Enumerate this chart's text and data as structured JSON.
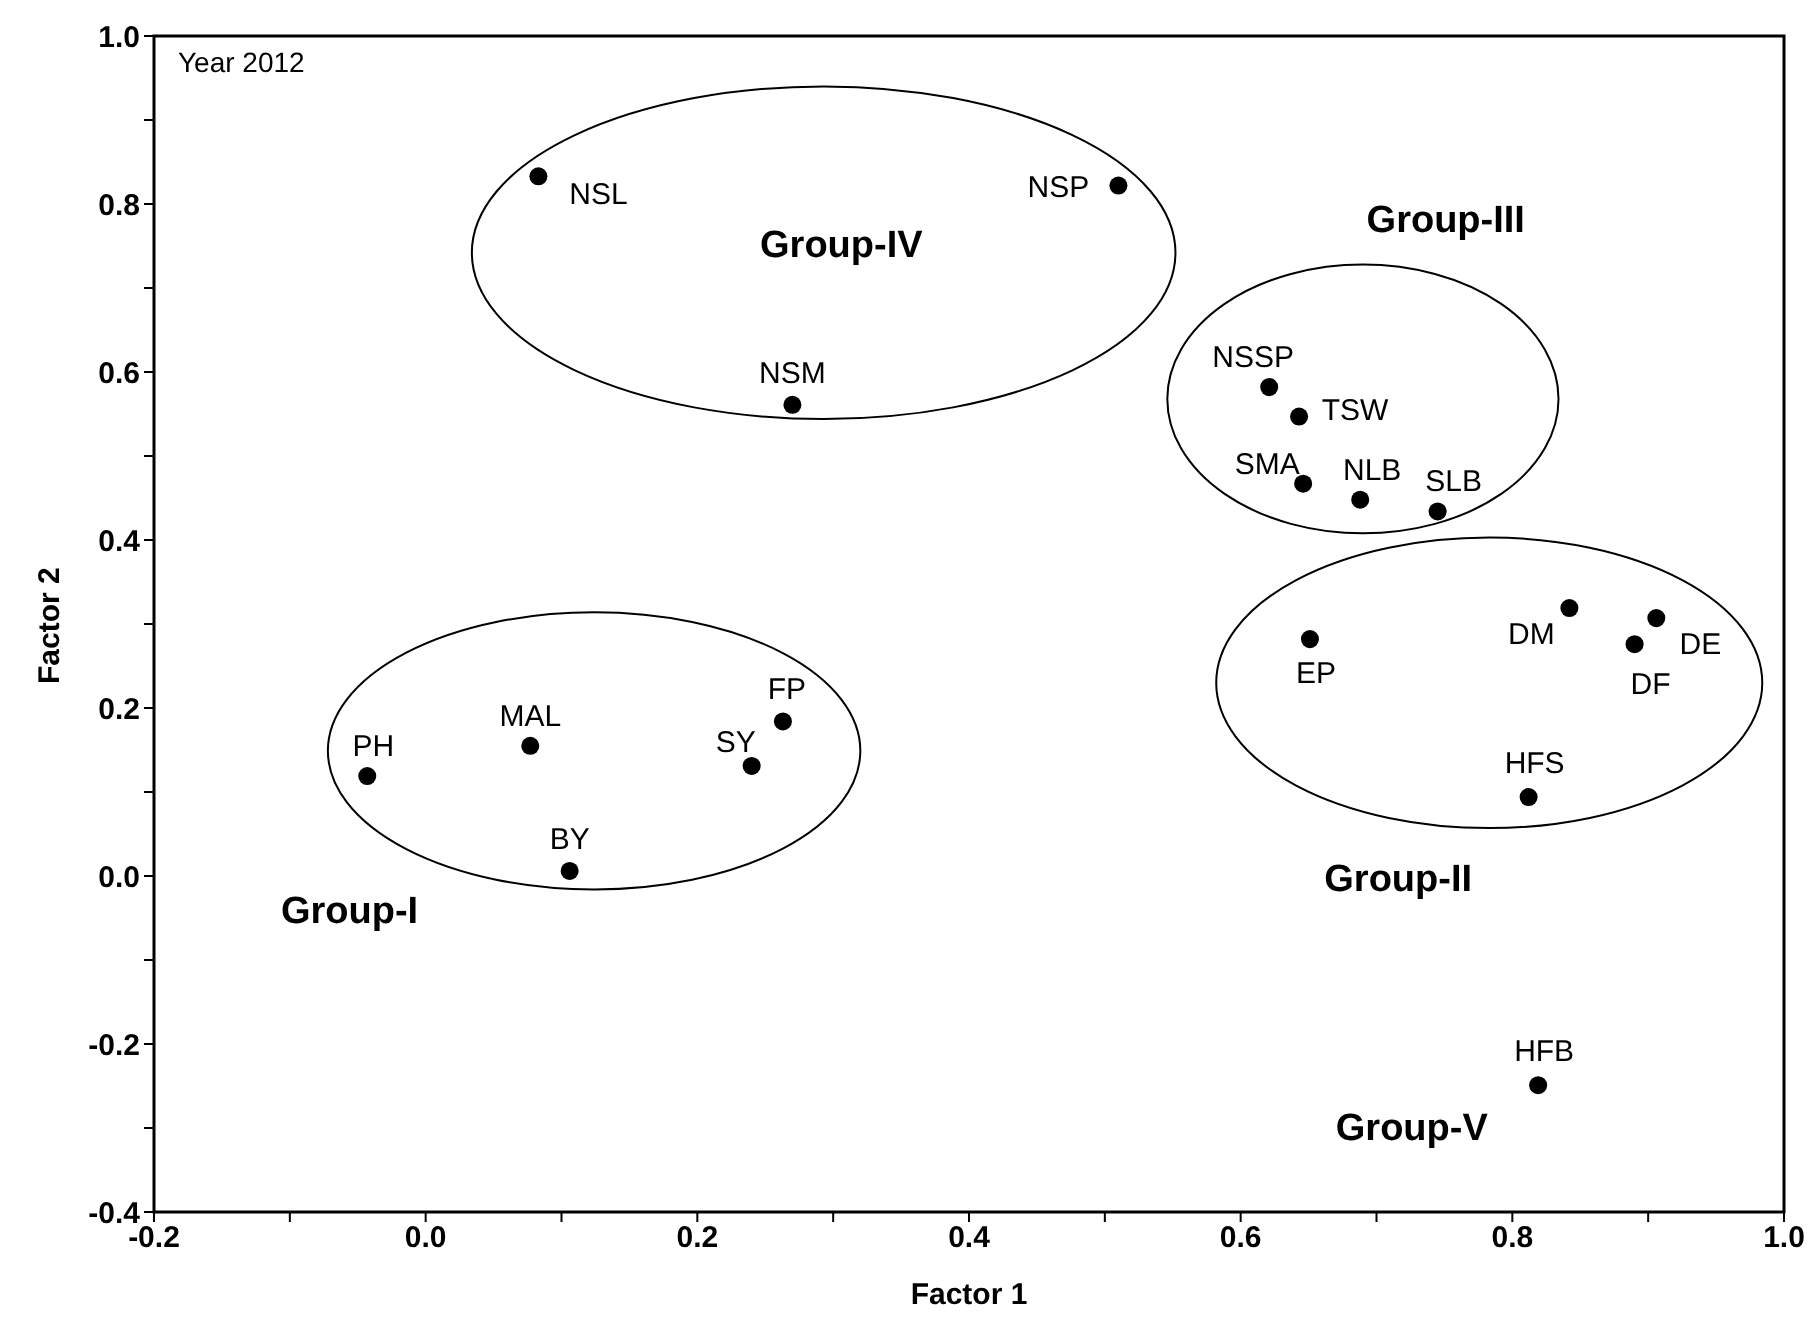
{
  "chart_data": {
    "type": "scatter",
    "xlabel": "Factor 1",
    "ylabel": "Factor 2",
    "xlim": [
      -0.2,
      1.0
    ],
    "ylim": [
      -0.4,
      1.0
    ],
    "xticks": [
      -0.2,
      {
        "value": -0.1,
        "label": null
      },
      "0.0",
      {
        "value": 0.1,
        "label": null
      },
      0.2,
      {
        "value": 0.3,
        "label": null
      },
      0.4,
      {
        "value": 0.5,
        "label": null
      },
      0.6,
      {
        "value": 0.7,
        "label": null
      },
      0.8,
      {
        "value": 0.9,
        "label": null
      },
      "1.0"
    ],
    "yticks": [
      -0.4,
      {
        "value": -0.3,
        "label": null
      },
      -0.2,
      {
        "value": -0.1,
        "label": null
      },
      "0.0",
      {
        "value": 0.1,
        "label": null
      },
      0.2,
      {
        "value": 0.3,
        "label": null
      },
      0.4,
      {
        "value": 0.5,
        "label": null
      },
      0.6,
      {
        "value": 0.7,
        "label": null
      },
      0.8,
      {
        "value": 0.9,
        "label": null
      },
      "1.0"
    ],
    "grid": false,
    "legend": false,
    "marker": "circle",
    "series": [
      {
        "color": "#000000",
        "x": [
          -0.043,
          0.077,
          0.106,
          0.24,
          0.263,
          0.083,
          0.27,
          0.51,
          0.621,
          0.643,
          0.646,
          0.688,
          0.745,
          0.651,
          0.842,
          0.906,
          0.89,
          0.812,
          0.819
        ],
        "values": [
          0.119,
          0.155,
          0.006,
          0.131,
          0.184,
          0.833,
          0.561,
          0.822,
          0.582,
          0.547,
          0.467,
          0.448,
          0.434,
          0.282,
          0.319,
          0.307,
          0.276,
          0.094,
          -0.249
        ],
        "value_labels": [
          "PH",
          "MAL",
          "BY",
          "SY",
          "FP",
          "NSL",
          "NSM",
          "NSP",
          "NSSP",
          "TSW",
          "SMA",
          "NLB",
          "SLB",
          "EP",
          "DM",
          "DE",
          "DF",
          "HFS",
          "HFB"
        ]
      }
    ],
    "annotations": [
      "Year 2012",
      "Group-I",
      "Group-II",
      "Group-III",
      "Group-IV",
      "Group-V"
    ]
  }
}
